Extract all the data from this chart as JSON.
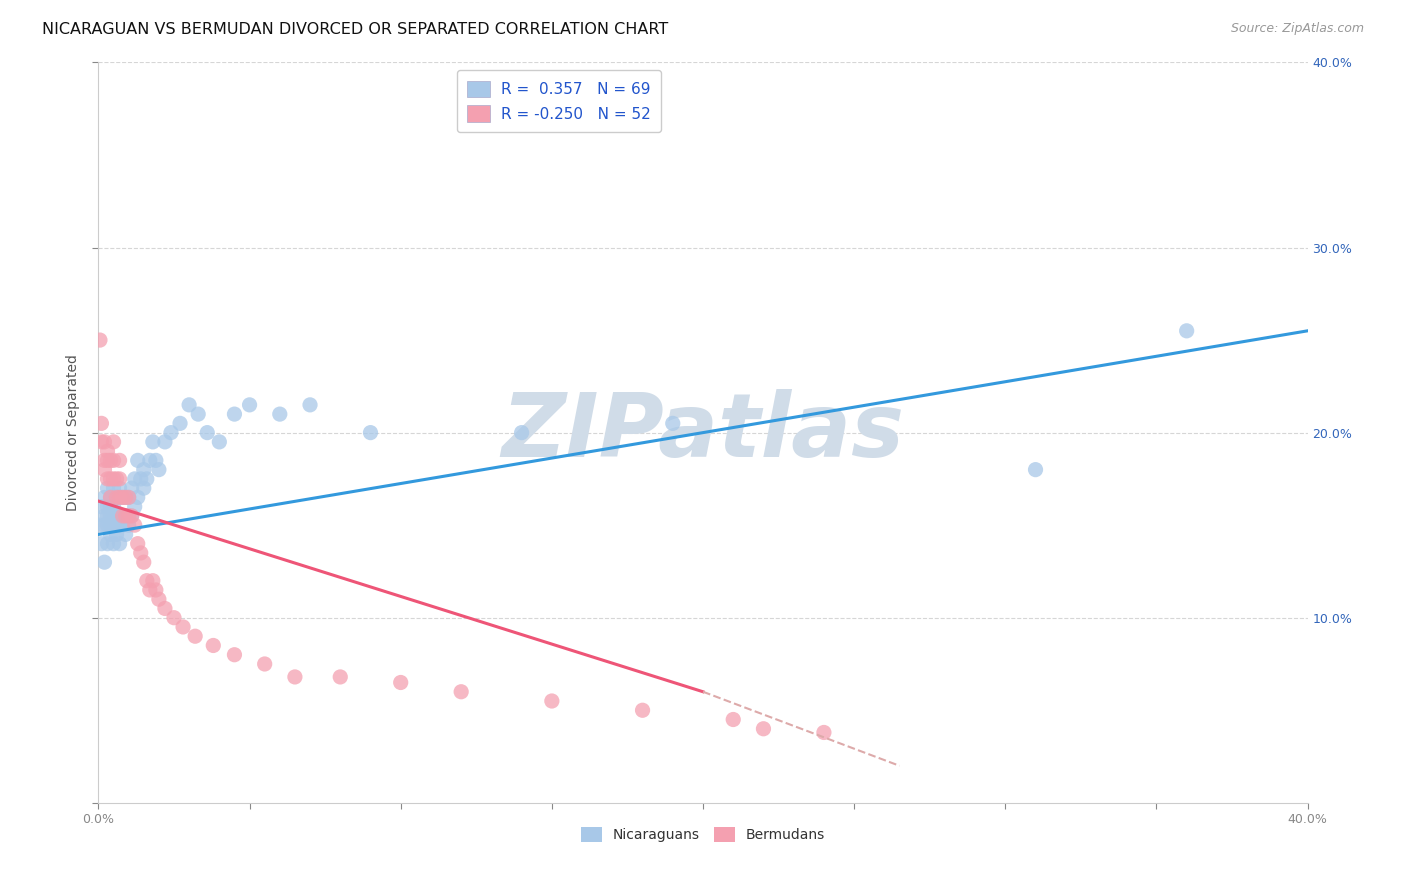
{
  "title": "NICARAGUAN VS BERMUDAN DIVORCED OR SEPARATED CORRELATION CHART",
  "source": "Source: ZipAtlas.com",
  "ylabel": "Divorced or Separated",
  "nicaraguan_color": "#a8c8e8",
  "bermudan_color": "#f4a0b0",
  "trendline_nicaraguan_color": "#3399dd",
  "trendline_bermudan_color": "#ee5577",
  "trendline_bermudan_dashed_color": "#ddaaaa",
  "watermark": "ZIPatlas",
  "watermark_color": "#d0dce8",
  "xlim": [
    0.0,
    0.4
  ],
  "ylim": [
    0.0,
    0.4
  ],
  "nicaraguan_x": [
    0.0005,
    0.001,
    0.001,
    0.002,
    0.002,
    0.002,
    0.002,
    0.003,
    0.003,
    0.003,
    0.003,
    0.003,
    0.004,
    0.004,
    0.004,
    0.004,
    0.004,
    0.005,
    0.005,
    0.005,
    0.005,
    0.005,
    0.006,
    0.006,
    0.006,
    0.006,
    0.007,
    0.007,
    0.007,
    0.007,
    0.008,
    0.008,
    0.008,
    0.009,
    0.009,
    0.009,
    0.01,
    0.01,
    0.01,
    0.011,
    0.011,
    0.012,
    0.012,
    0.013,
    0.013,
    0.014,
    0.015,
    0.015,
    0.016,
    0.017,
    0.018,
    0.019,
    0.02,
    0.022,
    0.024,
    0.027,
    0.03,
    0.033,
    0.036,
    0.04,
    0.045,
    0.05,
    0.06,
    0.07,
    0.09,
    0.14,
    0.19,
    0.31,
    0.36
  ],
  "nicaraguan_y": [
    0.15,
    0.14,
    0.16,
    0.13,
    0.15,
    0.155,
    0.165,
    0.14,
    0.15,
    0.155,
    0.16,
    0.17,
    0.145,
    0.15,
    0.155,
    0.16,
    0.165,
    0.14,
    0.15,
    0.155,
    0.16,
    0.17,
    0.145,
    0.15,
    0.155,
    0.165,
    0.14,
    0.15,
    0.155,
    0.17,
    0.15,
    0.155,
    0.165,
    0.145,
    0.155,
    0.165,
    0.15,
    0.155,
    0.165,
    0.155,
    0.17,
    0.16,
    0.175,
    0.165,
    0.185,
    0.175,
    0.17,
    0.18,
    0.175,
    0.185,
    0.195,
    0.185,
    0.18,
    0.195,
    0.2,
    0.205,
    0.215,
    0.21,
    0.2,
    0.195,
    0.21,
    0.215,
    0.21,
    0.215,
    0.2,
    0.2,
    0.205,
    0.18,
    0.255
  ],
  "bermudan_x": [
    0.0005,
    0.001,
    0.001,
    0.002,
    0.002,
    0.002,
    0.003,
    0.003,
    0.003,
    0.004,
    0.004,
    0.004,
    0.005,
    0.005,
    0.005,
    0.006,
    0.006,
    0.007,
    0.007,
    0.007,
    0.008,
    0.008,
    0.009,
    0.009,
    0.01,
    0.01,
    0.011,
    0.012,
    0.013,
    0.014,
    0.015,
    0.016,
    0.017,
    0.018,
    0.019,
    0.02,
    0.022,
    0.025,
    0.028,
    0.032,
    0.038,
    0.045,
    0.055,
    0.065,
    0.08,
    0.1,
    0.12,
    0.15,
    0.18,
    0.21,
    0.22,
    0.24
  ],
  "bermudan_y": [
    0.25,
    0.195,
    0.205,
    0.185,
    0.195,
    0.18,
    0.19,
    0.175,
    0.185,
    0.175,
    0.185,
    0.165,
    0.175,
    0.185,
    0.195,
    0.165,
    0.175,
    0.165,
    0.175,
    0.185,
    0.155,
    0.165,
    0.155,
    0.165,
    0.155,
    0.165,
    0.155,
    0.15,
    0.14,
    0.135,
    0.13,
    0.12,
    0.115,
    0.12,
    0.115,
    0.11,
    0.105,
    0.1,
    0.095,
    0.09,
    0.085,
    0.08,
    0.075,
    0.068,
    0.068,
    0.065,
    0.06,
    0.055,
    0.05,
    0.045,
    0.04,
    0.038
  ],
  "nic_trendline_x0": 0.0,
  "nic_trendline_y0": 0.145,
  "nic_trendline_x1": 0.4,
  "nic_trendline_y1": 0.255,
  "berm_trendline_x0": 0.0,
  "berm_trendline_y0": 0.163,
  "berm_trendline_x1_solid": 0.2,
  "berm_trendline_y1_solid": 0.06,
  "berm_trendline_x1_dashed": 0.265,
  "berm_trendline_y1_dashed": 0.02
}
